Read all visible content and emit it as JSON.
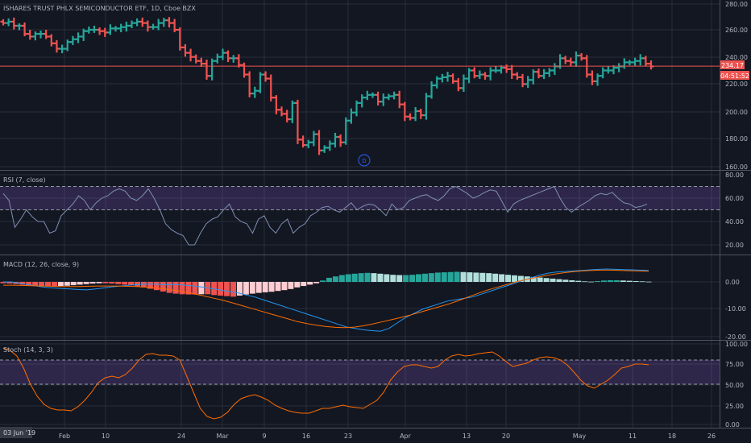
{
  "chart_data": [
    {
      "type": "ohlc",
      "title": "ISHARES TRUST PHLX SEMICONDUCTOR ETF, 1D, Cboe BZX",
      "y_ticks": [
        "280.00",
        "260.00",
        "240.00",
        "220.00",
        "200.00",
        "180.00",
        "160.00"
      ],
      "ylim": [
        158,
        282
      ],
      "last_price": "234.17",
      "countdown": "04:51:52",
      "marker": "D",
      "colors": {
        "up": "#26a69a",
        "down": "#ef5350",
        "price_line": "#ef5350"
      },
      "x_ticks": [
        "Feb",
        "10",
        "24",
        "Mar",
        "9",
        "16",
        "23",
        "Apr",
        "13",
        "20",
        "May",
        "11",
        "18",
        "26"
      ],
      "date_badge": "03 Jun '19",
      "closes": [
        266,
        267,
        264,
        264,
        258,
        256,
        258,
        258,
        256,
        251,
        247,
        247,
        252,
        254,
        256,
        260,
        261,
        261,
        260,
        259,
        262,
        262,
        263,
        264,
        266,
        267,
        266,
        263,
        263,
        266,
        268,
        266,
        261,
        248,
        244,
        241,
        238,
        236,
        227,
        238,
        241,
        244,
        240,
        240,
        235,
        228,
        214,
        216,
        228,
        225,
        211,
        202,
        199,
        195,
        207,
        180,
        176,
        178,
        184,
        172,
        174,
        177,
        182,
        178,
        194,
        200,
        207,
        211,
        213,
        213,
        208,
        211,
        212,
        213,
        206,
        197,
        196,
        201,
        198,
        212,
        220,
        225,
        226,
        227,
        223,
        218,
        225,
        231,
        227,
        228,
        227,
        231,
        231,
        233,
        232,
        228,
        226,
        221,
        224,
        230,
        227,
        229,
        231,
        234,
        240,
        238,
        237,
        242,
        240,
        228,
        223,
        227,
        231,
        231,
        233,
        234,
        237,
        237,
        238,
        240,
        236,
        234
      ]
    },
    {
      "type": "line",
      "title": "RSI (7, close)",
      "y_ticks": [
        "80.00",
        "60.00",
        "40.00",
        "20.00"
      ],
      "ylim": [
        10,
        82
      ],
      "bands": [
        50,
        70
      ],
      "values": [
        64,
        58,
        35,
        42,
        50,
        44,
        40,
        40,
        30,
        32,
        45,
        50,
        55,
        62,
        58,
        50,
        56,
        60,
        62,
        66,
        68,
        66,
        60,
        58,
        62,
        68,
        60,
        50,
        38,
        33,
        30,
        28,
        20,
        20,
        30,
        38,
        42,
        44,
        50,
        55,
        44,
        40,
        38,
        30,
        42,
        45,
        35,
        30,
        38,
        42,
        30,
        35,
        38,
        45,
        48,
        52,
        53,
        50,
        48,
        52,
        56,
        50,
        53,
        55,
        54,
        50,
        45,
        55,
        50,
        52,
        58,
        60,
        62,
        63,
        60,
        58,
        62,
        68,
        70,
        67,
        64,
        60,
        62,
        65,
        67,
        66,
        57,
        48,
        55,
        58,
        60,
        62,
        64,
        66,
        68,
        70,
        60,
        52,
        48,
        52,
        55,
        58,
        62,
        64,
        63,
        65,
        60,
        56,
        55,
        52,
        53,
        55
      ]
    },
    {
      "type": "macd",
      "title": "MACD (12, 26, close, 9)",
      "y_ticks": [
        "0.00",
        "-10.00",
        "-20.00"
      ],
      "ylim": [
        -21,
        4
      ],
      "histogram": [
        -0.5,
        -0.6,
        -0.8,
        -1.0,
        -1.2,
        -1.3,
        -1.5,
        -1.6,
        -1.6,
        -1.5,
        -1.4,
        -1.2,
        -1.0,
        -0.8,
        -0.6,
        -0.5,
        -0.5,
        -0.6,
        -0.8,
        -1.0,
        -1.3,
        -1.6,
        -2.0,
        -2.5,
        -3.0,
        -3.5,
        -4.0,
        -4.3,
        -4.5,
        -4.6,
        -4.6,
        -4.5,
        -4.5,
        -4.8,
        -5.0,
        -5.2,
        -5.4,
        -5.0,
        -4.6,
        -4.3,
        -4.0,
        -3.8,
        -3.6,
        -3.3,
        -3.0,
        -2.6,
        -2.0,
        -1.5,
        -1.0,
        -0.5,
        0.5,
        1.5,
        2.0,
        2.5,
        2.8,
        3.0,
        3.2,
        3.3,
        3.2,
        3.0,
        2.8,
        2.6,
        2.5,
        2.5,
        2.6,
        2.8,
        3.0,
        3.2,
        3.4,
        3.5,
        3.6,
        3.7,
        3.6,
        3.5,
        3.4,
        3.3,
        3.2,
        3.0,
        2.8,
        2.6,
        2.4,
        2.2,
        2.0,
        1.8,
        1.6,
        1.4,
        1.2,
        1.0,
        0.8,
        0.6,
        0.4,
        0.2,
        0.1,
        0.3,
        0.5,
        0.6,
        0.6,
        0.5,
        0.4,
        0.3,
        0.2,
        0.1
      ],
      "macd_line": [
        0,
        0,
        -0.5,
        -1,
        -1.5,
        -2,
        -2.2,
        -2.4,
        -2.6,
        -2.8,
        -2.9,
        -2.6,
        -2.2,
        -1.8,
        -1.5,
        -1.2,
        -1,
        -0.8,
        -0.8,
        -1,
        -1,
        -1,
        -1.3,
        -1.6,
        -2,
        -2.5,
        -3,
        -3.5,
        -4,
        -4.8,
        -5.5,
        -6.5,
        -7.5,
        -8.5,
        -9.5,
        -10.5,
        -11.5,
        -12.5,
        -13.5,
        -14.5,
        -15.5,
        -16.5,
        -17,
        -17.5,
        -17.8,
        -18,
        -17,
        -15,
        -13,
        -11.5,
        -10,
        -9,
        -8,
        -7,
        -6.5,
        -6,
        -5.5,
        -4.5,
        -3.5,
        -2.5,
        -1.5,
        -0.5,
        0.5,
        1.5,
        2.5,
        3.2,
        3.6,
        3.8,
        4.0,
        4.2,
        4.4,
        4.6,
        4.7,
        4.6,
        4.5,
        4.4,
        4.3,
        4.2
      ],
      "signal_line": [
        -1.2,
        -1.2,
        -1.3,
        -1.4,
        -1.5,
        -1.6,
        -1.7,
        -1.7,
        -1.7,
        -1.6,
        -1.5,
        -1.5,
        -1.5,
        -1.6,
        -1.7,
        -1.9,
        -2.2,
        -2.6,
        -3,
        -3.6,
        -4.3,
        -5,
        -5.8,
        -6.6,
        -7.5,
        -8.5,
        -9.5,
        -10.5,
        -11.5,
        -12.5,
        -13.5,
        -14.5,
        -15.2,
        -15.8,
        -16.3,
        -16.6,
        -16.7,
        -16.5,
        -16,
        -15.3,
        -14.5,
        -13.7,
        -12.9,
        -12,
        -11,
        -10,
        -9,
        -8,
        -6.8,
        -5.5,
        -4.2,
        -3,
        -2,
        -1,
        0,
        0.8,
        1.5,
        2.2,
        2.8,
        3.3,
        3.7,
        4.0,
        4.2,
        4.3,
        4.3,
        4.2,
        4.1,
        4.0,
        3.9
      ]
    },
    {
      "type": "line",
      "title": "Stoch (14, 3, 3)",
      "y_ticks": [
        "100.00",
        "75.00",
        "50.00",
        "25.00",
        "0.00"
      ],
      "ylim": [
        -3,
        103
      ],
      "bands": [
        50,
        80
      ],
      "values": [
        95,
        92,
        85,
        70,
        50,
        35,
        25,
        20,
        18,
        18,
        17,
        22,
        30,
        40,
        52,
        58,
        60,
        58,
        62,
        70,
        80,
        87,
        88,
        86,
        86,
        85,
        80,
        60,
        40,
        20,
        10,
        7,
        9,
        15,
        25,
        32,
        35,
        37,
        34,
        30,
        24,
        20,
        17,
        15,
        14,
        14,
        17,
        20,
        20,
        22,
        24,
        22,
        21,
        20,
        25,
        30,
        40,
        55,
        65,
        72,
        74,
        74,
        72,
        70,
        72,
        80,
        85,
        87,
        85,
        86,
        88,
        89,
        90,
        85,
        78,
        72,
        74,
        76,
        80,
        83,
        84,
        83,
        80,
        74,
        65,
        55,
        48,
        45,
        50,
        55,
        62,
        70,
        72,
        75,
        75,
        74
      ]
    }
  ]
}
